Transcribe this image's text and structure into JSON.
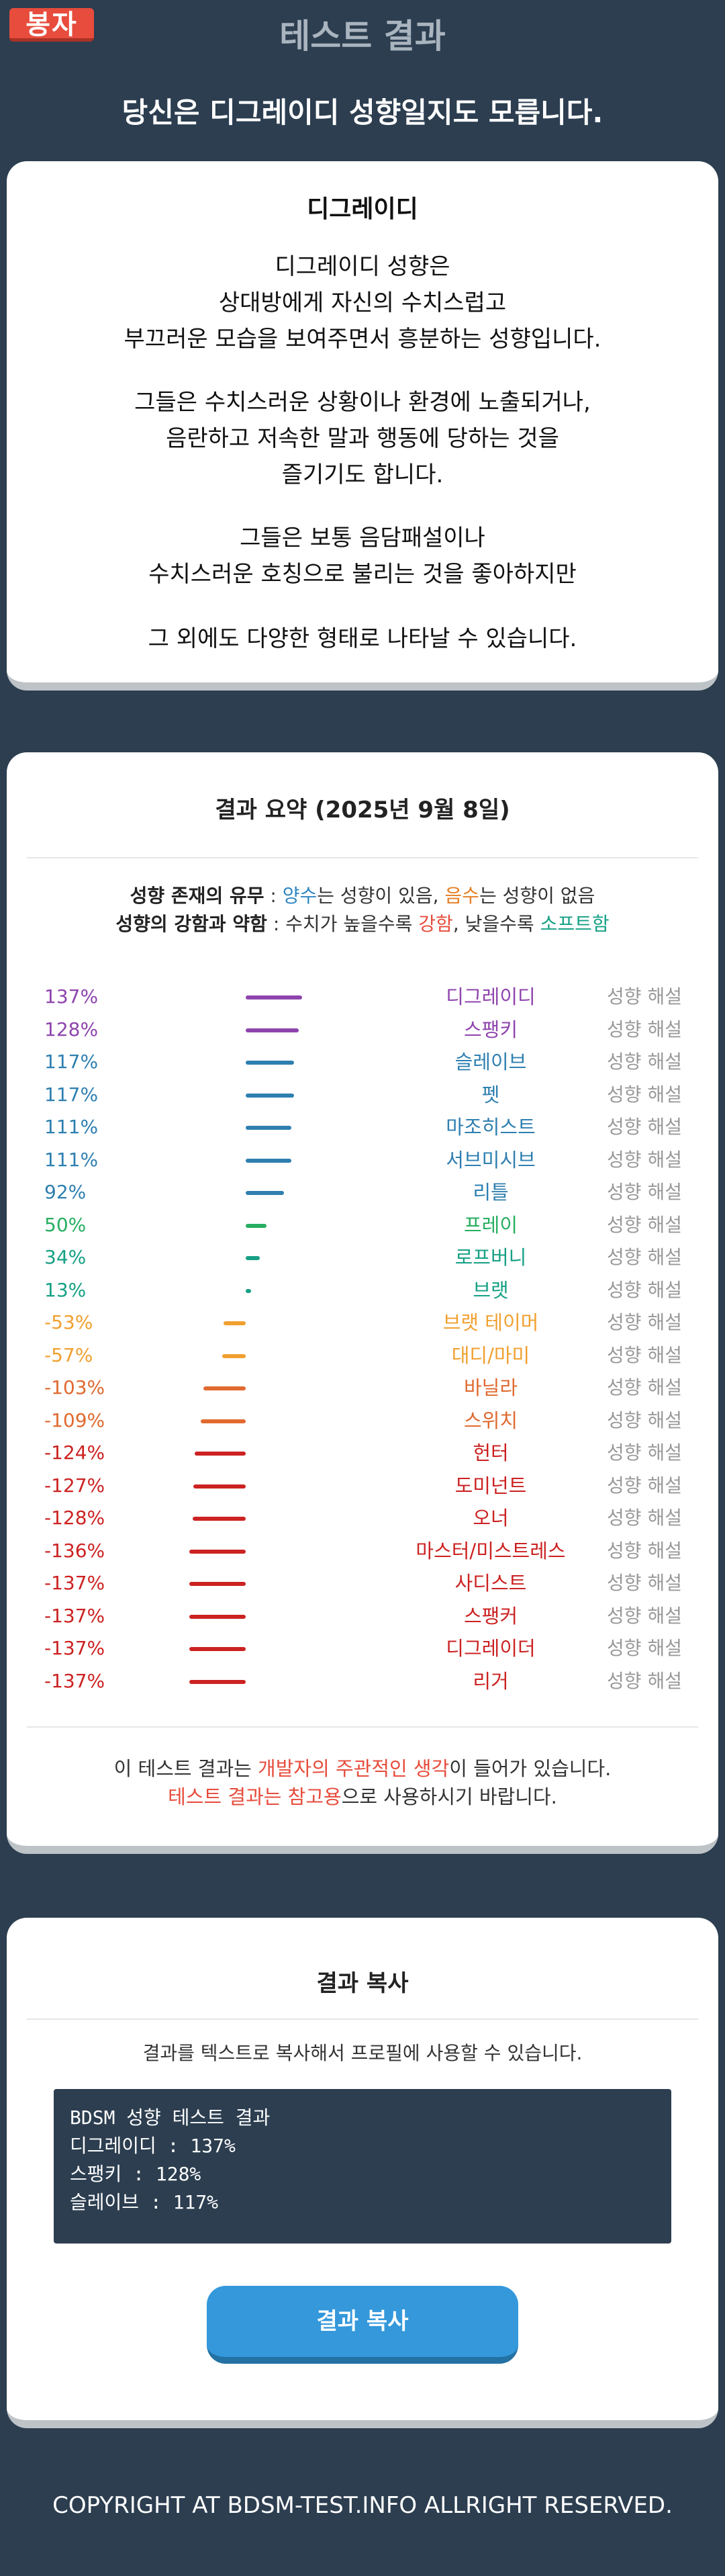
{
  "header": {
    "logo_text": "봉자",
    "title": "테스트 결과",
    "headline": "당신은 디그레이디 성향일지도 모릅니다."
  },
  "description": {
    "title": "디그레이디",
    "paragraphs": [
      [
        "디그레이디 성향은",
        "상대방에게 자신의 수치스럽고",
        "부끄러운 모습을 보여주면서 흥분하는 성향입니다."
      ],
      [
        "그들은 수치스러운 상황이나 환경에 노출되거나,",
        "음란하고 저속한 말과 행동에 당하는 것을",
        "즐기기도 합니다."
      ],
      [
        "그들은 보통 음담패설이나",
        "수치스러운 호칭으로 불리는 것을 좋아하지만"
      ],
      [
        "그 외에도 다양한 형태로 나타날 수 있습니다."
      ]
    ]
  },
  "summary": {
    "title": "결과 요약 (2025년 9월 8일)",
    "legend": {
      "line1": [
        "성향 존재의 유무",
        " : ",
        "양수",
        "는 성향이 있음, ",
        "음수",
        "는 성향이 없음"
      ],
      "line2": [
        "성향의 강함과 약함",
        " : 수치가 높을수록 ",
        "강함",
        ", 낮을수록 ",
        "소프트함"
      ]
    },
    "detail_label": "성향 해설",
    "note": {
      "line1": [
        "이 테스트 결과는 ",
        "개발자의 주관적인 생각",
        "이 들어가 있습니다."
      ],
      "line2": [
        "테스트 결과는 참고용",
        "으로 사용하시기 바랍니다."
      ]
    }
  },
  "chart_data": {
    "type": "bar",
    "categories": [
      "디그레이디",
      "스팽키",
      "슬레이브",
      "펫",
      "마조히스트",
      "서브미시브",
      "리틀",
      "프레이",
      "로프버니",
      "브랫",
      "브랫 테이머",
      "대디/마미",
      "바닐라",
      "스위치",
      "헌터",
      "도미넌트",
      "오너",
      "마스터/미스트레스",
      "사디스트",
      "스팽커",
      "디그레이더",
      "리거"
    ],
    "values": [
      137,
      128,
      117,
      117,
      111,
      111,
      92,
      50,
      34,
      13,
      -53,
      -57,
      -103,
      -109,
      -124,
      -127,
      -128,
      -136,
      -137,
      -137,
      -137,
      -137
    ],
    "unit": "%",
    "colors": [
      "#8e44ad",
      "#8e44ad",
      "#2e7fb0",
      "#2e7fb0",
      "#2e7fb0",
      "#2e7fb0",
      "#2e7fb0",
      "#27ae60",
      "#16a085",
      "#16a085",
      "#f0a030",
      "#f0a030",
      "#e06a30",
      "#e06a30",
      "#cc2222",
      "#cc2222",
      "#cc2222",
      "#cc2222",
      "#cc2222",
      "#cc2222",
      "#cc2222",
      "#cc2222"
    ],
    "ylim": [
      -137,
      137
    ]
  },
  "copy": {
    "title": "결과 복사",
    "desc": "결과를 텍스트로 복사해서 프로필에 사용할 수 있습니다.",
    "lines": [
      "BDSM 성향 테스트 결과",
      "",
      "디그레이디 : 137%",
      "스팽키 : 128%",
      "슬레이브 : 117%"
    ],
    "button": "결과 복사"
  },
  "footer": {
    "text": "COPYRIGHT AT BDSM-TEST.INFO ALLRIGHT RESERVED."
  }
}
